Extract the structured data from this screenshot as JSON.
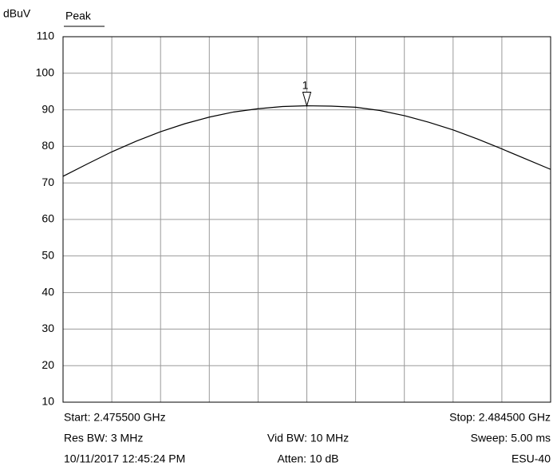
{
  "chart_data": {
    "type": "line",
    "y_unit": "dBuV",
    "trace_label": "Peak",
    "x": [
      2.4755,
      2.47595,
      2.4764,
      2.47685,
      2.4773,
      2.47775,
      2.4782,
      2.47865,
      2.4791,
      2.47955,
      2.48,
      2.48045,
      2.4809,
      2.48135,
      2.4818,
      2.48225,
      2.4827,
      2.48315,
      2.4836,
      2.48405,
      2.4845
    ],
    "series": [
      {
        "name": "Peak",
        "color": "#000000",
        "values": [
          71.8,
          75.2,
          78.5,
          81.4,
          84.0,
          86.2,
          88.0,
          89.4,
          90.3,
          90.9,
          91.1,
          91.0,
          90.7,
          89.8,
          88.4,
          86.6,
          84.5,
          82.0,
          79.3,
          76.5,
          73.7
        ]
      }
    ],
    "marker": {
      "label": "1",
      "x": 2.48,
      "value": 91.1
    },
    "xlim": [
      2.4755,
      2.4845
    ],
    "x_divisions": 10,
    "ylim": [
      10,
      110
    ],
    "yticks": [
      10,
      20,
      30,
      40,
      50,
      60,
      70,
      80,
      90,
      100,
      110
    ],
    "grid": true,
    "footer": {
      "start": "Start: 2.475500 GHz",
      "stop": "Stop: 2.484500 GHz",
      "res_bw": "Res BW: 3 MHz",
      "vid_bw": "Vid BW: 10 MHz",
      "sweep": "Sweep: 5.00 ms",
      "datetime": "10/11/2017 12:45:24 PM",
      "atten": "Atten: 10 dB",
      "device": "ESU-40"
    }
  }
}
